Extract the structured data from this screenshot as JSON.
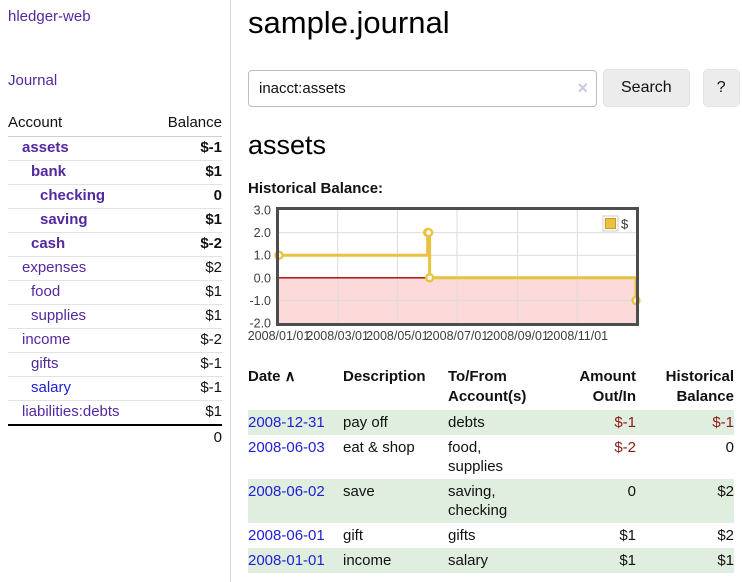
{
  "sidebar": {
    "app_title": "hledger-web",
    "nav": [
      {
        "label": "Journal"
      }
    ],
    "accounts_table": {
      "headers": {
        "account": "Account",
        "balance": "Balance"
      },
      "rows": [
        {
          "name": "assets",
          "depth": 0,
          "balance": "$-1",
          "matched": true
        },
        {
          "name": "bank",
          "depth": 1,
          "balance": "$1",
          "matched": true
        },
        {
          "name": "checking",
          "depth": 2,
          "balance": "0",
          "matched": true
        },
        {
          "name": "saving",
          "depth": 2,
          "balance": "$1",
          "matched": true
        },
        {
          "name": "cash",
          "depth": 1,
          "balance": "$-2",
          "matched": true
        },
        {
          "name": "expenses",
          "depth": 0,
          "balance": "$2",
          "matched": false
        },
        {
          "name": "food",
          "depth": 1,
          "balance": "$1",
          "matched": false
        },
        {
          "name": "supplies",
          "depth": 1,
          "balance": "$1",
          "matched": false
        },
        {
          "name": "income",
          "depth": 0,
          "balance": "$-2",
          "matched": false
        },
        {
          "name": "gifts",
          "depth": 1,
          "balance": "$-1",
          "matched": false
        },
        {
          "name": "salary",
          "depth": 1,
          "balance": "$-1",
          "matched": false,
          "unvisited": true
        },
        {
          "name": "liabilities:debts",
          "depth": 0,
          "balance": "$1",
          "matched": false
        }
      ],
      "total": "0"
    }
  },
  "header": {
    "title": "sample.journal"
  },
  "search": {
    "value": "inacct:assets",
    "clear_icon": "×",
    "button_label": "Search",
    "help_label": "?"
  },
  "account_page": {
    "heading": "assets",
    "chart_label": "Historical Balance:"
  },
  "chart_data": {
    "type": "line",
    "title": "Historical Balance",
    "step": true,
    "series": [
      {
        "name": "$",
        "color": "#e9c23f",
        "points": [
          [
            "2008-01-01",
            1
          ],
          [
            "2008-06-01",
            2
          ],
          [
            "2008-06-02",
            2
          ],
          [
            "2008-06-03",
            0
          ],
          [
            "2008-12-31",
            -1
          ]
        ]
      }
    ],
    "xlim": [
      "2008-01-01",
      "2008-12-31"
    ],
    "ylim": [
      -2,
      3
    ],
    "x_ticks": [
      "2008/01/01",
      "2008/03/01",
      "2008/05/01",
      "2008/07/01",
      "2008/09/01",
      "2008/11/01"
    ],
    "y_ticks": [
      3,
      2,
      1,
      0,
      -1,
      -2
    ],
    "grid": true,
    "legend_position": "top-right",
    "grid_color": "#dcdcdc",
    "border_color": "#4d4d4d",
    "negative_region_fill": "#fcdada",
    "zero_line_color": "#a30000"
  },
  "register": {
    "sort_icon": "∧",
    "headers": [
      "Date",
      "Description",
      "To/From Account(s)",
      "Amount Out/In",
      "Historical Balance"
    ],
    "rows": [
      {
        "date": "2008-12-31",
        "description": "pay off",
        "accounts": "debts",
        "amount": "$-1",
        "balance": "$-1"
      },
      {
        "date": "2008-06-03",
        "description": "eat & shop",
        "accounts": "food, supplies",
        "amount": "$-2",
        "balance": "0"
      },
      {
        "date": "2008-06-02",
        "description": "save",
        "accounts": "saving, checking",
        "amount": "0",
        "balance": "$2"
      },
      {
        "date": "2008-06-01",
        "description": "gift",
        "accounts": "gifts",
        "amount": "$1",
        "balance": "$2"
      },
      {
        "date": "2008-01-01",
        "description": "income",
        "accounts": "salary",
        "amount": "$1",
        "balance": "$1"
      }
    ]
  }
}
